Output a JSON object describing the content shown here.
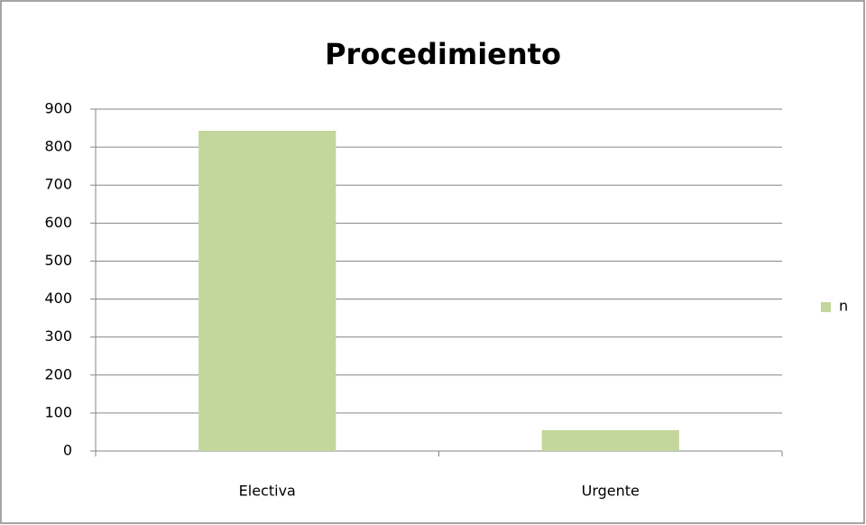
{
  "chart_data": {
    "type": "bar",
    "title": "Procedimiento",
    "categories": [
      "Electiva",
      "Urgente"
    ],
    "series": [
      {
        "name": "n",
        "color": "#c3d69b",
        "values": [
          843,
          55
        ]
      }
    ],
    "ylim": [
      0,
      900
    ],
    "yticks": [
      0,
      100,
      200,
      300,
      400,
      500,
      600,
      700,
      800,
      900
    ],
    "grid": true,
    "legend": "right"
  }
}
